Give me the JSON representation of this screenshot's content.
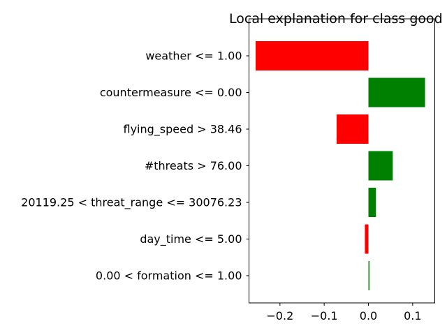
{
  "chart_data": {
    "type": "bar",
    "orientation": "horizontal",
    "title": "Local explanation for class good",
    "xlabel": "",
    "ylabel": "",
    "xlim": [
      -0.27,
      0.15
    ],
    "xticks": [
      -0.2,
      -0.1,
      0.0,
      0.1
    ],
    "xtick_labels": [
      "−0.2",
      "−0.1",
      "0.0",
      "0.1"
    ],
    "grid": false,
    "legend": "none",
    "colors": {
      "positive": "#008000",
      "negative": "#ff0000",
      "axis": "#000000"
    },
    "categories": [
      "weather <= 1.00",
      "countermeasure <= 0.00",
      "flying_speed > 38.46",
      "#threats > 76.00",
      "20119.25 < threat_range <= 30076.23",
      "day_time <= 5.00",
      "0.00 < formation <= 1.00"
    ],
    "values": [
      -0.255,
      0.128,
      -0.072,
      0.055,
      0.017,
      -0.008,
      0.002
    ]
  }
}
